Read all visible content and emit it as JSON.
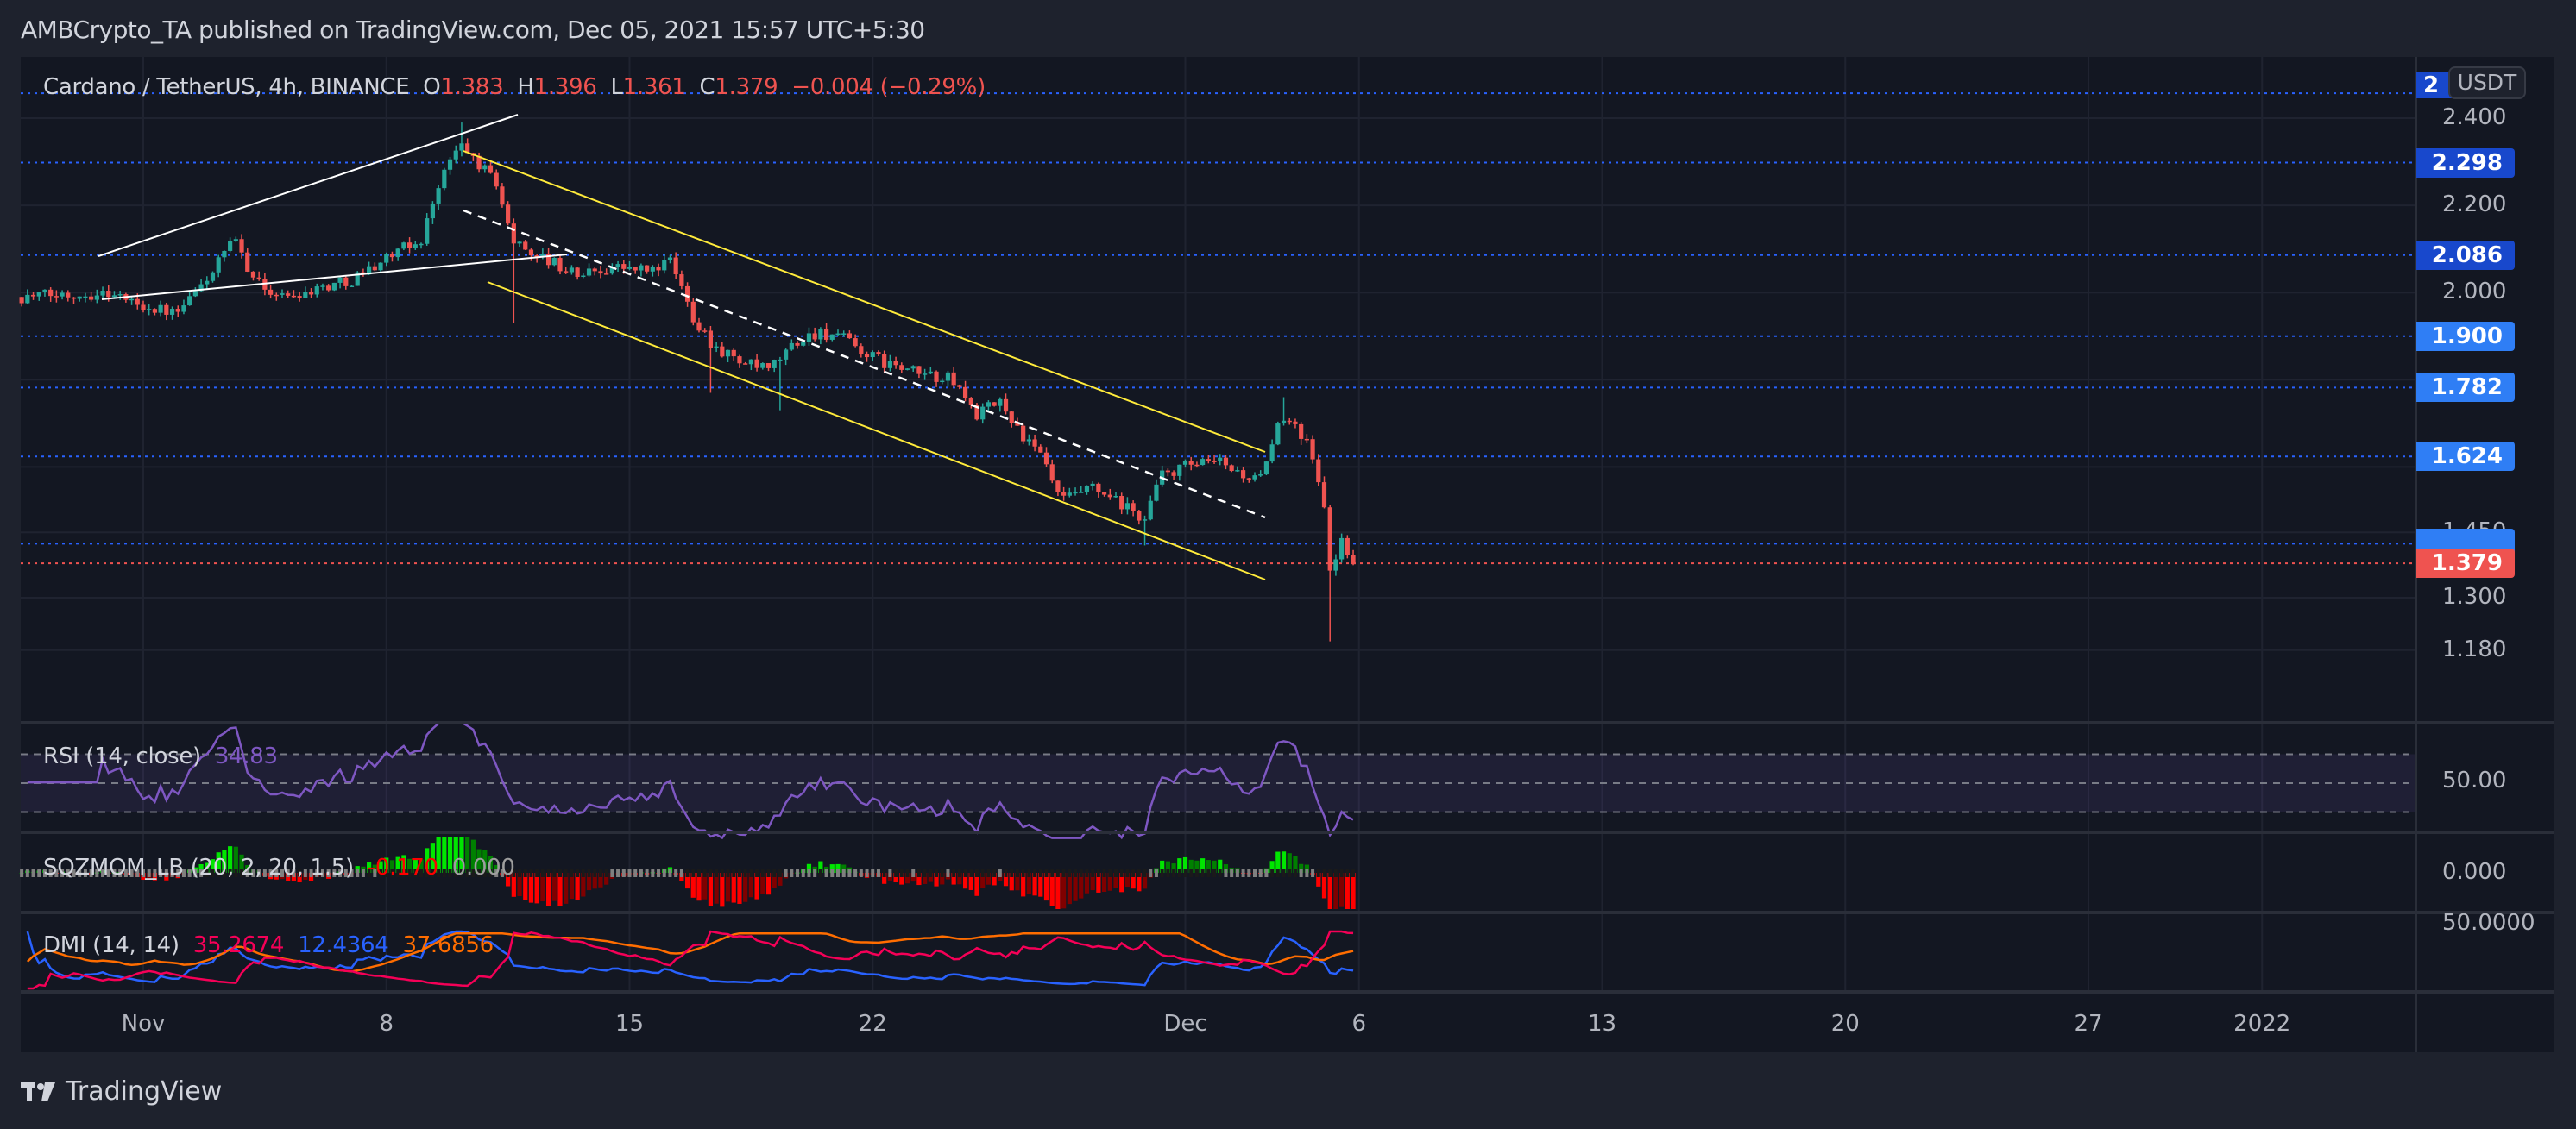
{
  "header": {
    "publish_line": "AMBCrypto_TA published on TradingView.com, Dec 05, 2021 15:57 UTC+5:30"
  },
  "symbol": {
    "title": "Cardano / TetherUS, 4h, BINANCE",
    "open_label": "O",
    "open": "1.383",
    "high_label": "H",
    "high": "1.396",
    "low_label": "L",
    "low": "1.361",
    "close_label": "C",
    "close": "1.379",
    "change": "−0.004 (−0.29%)"
  },
  "price_axis": {
    "currency": "USDT",
    "ticks": [
      "2.400",
      "2.200",
      "2.000",
      "1.450",
      "1.300",
      "1.180"
    ],
    "level_labels": [
      {
        "text": "2",
        "price": 2.457,
        "color": "#1848cc"
      },
      {
        "text": "2.298",
        "price": 2.298,
        "color": "#1848cc"
      },
      {
        "text": "2.086",
        "price": 2.086,
        "color": "#1848cc"
      },
      {
        "text": "1.900",
        "price": 1.9,
        "color": "#2f7ef5"
      },
      {
        "text": "1.782",
        "price": 1.782,
        "color": "#2f7ef5"
      },
      {
        "text": "1.624",
        "price": 1.624,
        "color": "#2f7ef5"
      },
      {
        "text": "",
        "price": 1.424,
        "color": "#2f7ef5"
      },
      {
        "text": "1.379",
        "price": 1.379,
        "color": "#ef5350"
      }
    ]
  },
  "time_axis": {
    "labels": [
      "Nov",
      "8",
      "15",
      "22",
      "Dec",
      "6",
      "13",
      "20",
      "27",
      "2022"
    ]
  },
  "indicators": {
    "rsi": {
      "title": "RSI (14, close)",
      "value": "34.83",
      "axis": "50.00",
      "color": "#7e57c2"
    },
    "sqz": {
      "title": "SQZMOM_LB (20, 2, 20, 1.5)",
      "value1": "-0.170",
      "value2": "0.000",
      "axis": "0.000"
    },
    "dmi": {
      "title": "DMI (14, 14)",
      "plus": "35.2674",
      "minus": "12.4364",
      "adx": "37.6856",
      "axis": "50.0000",
      "colors": {
        "plus": "#f50057",
        "minus": "#2962ff",
        "adx": "#ff6d00"
      }
    }
  },
  "colors": {
    "up": "#26a69a",
    "down": "#ef5350",
    "level": "#2962ff"
  },
  "chart_data": {
    "type": "candlestick",
    "interval": "4h",
    "note": "approximate price waypoints (day offset from Nov 1 2021, price USDT)",
    "waypoints": [
      [
        -3.5,
        1.99
      ],
      [
        -1,
        2.0
      ],
      [
        0,
        1.97
      ],
      [
        1,
        1.95
      ],
      [
        2,
        2.05
      ],
      [
        2.6,
        2.12
      ],
      [
        3.3,
        2.02
      ],
      [
        4,
        1.99
      ],
      [
        5,
        2.01
      ],
      [
        6,
        2.03
      ],
      [
        7,
        2.08
      ],
      [
        8,
        2.12
      ],
      [
        8.5,
        2.25
      ],
      [
        9.1,
        2.34
      ],
      [
        9.6,
        2.3
      ],
      [
        10.2,
        2.25
      ],
      [
        10.6,
        2.12
      ],
      [
        11.5,
        2.08
      ],
      [
        12.5,
        2.04
      ],
      [
        13.5,
        2.06
      ],
      [
        14.5,
        2.05
      ],
      [
        15.2,
        2.07
      ],
      [
        15.8,
        1.95
      ],
      [
        16.4,
        1.88
      ],
      [
        17.2,
        1.84
      ],
      [
        18,
        1.82
      ],
      [
        18.7,
        1.88
      ],
      [
        19.4,
        1.91
      ],
      [
        20,
        1.9
      ],
      [
        21,
        1.85
      ],
      [
        22,
        1.82
      ],
      [
        23.3,
        1.8
      ],
      [
        24,
        1.72
      ],
      [
        24.7,
        1.75
      ],
      [
        25.4,
        1.66
      ],
      [
        25.9,
        1.62
      ],
      [
        26.4,
        1.52
      ],
      [
        27.3,
        1.55
      ],
      [
        28.2,
        1.51
      ],
      [
        28.8,
        1.48
      ],
      [
        29.3,
        1.58
      ],
      [
        30,
        1.6
      ],
      [
        31,
        1.61
      ],
      [
        31.7,
        1.58
      ],
      [
        32.2,
        1.57
      ],
      [
        32.8,
        1.72
      ],
      [
        33.2,
        1.7
      ],
      [
        33.7,
        1.62
      ],
      [
        34.0,
        1.5
      ],
      [
        34.1,
        1.36
      ],
      [
        34.3,
        1.38
      ],
      [
        34.5,
        1.43
      ],
      [
        34.75,
        1.4
      ],
      [
        34.9,
        1.379
      ]
    ],
    "wicks": [
      [
        9.2,
        2.39,
        "high"
      ],
      [
        10.7,
        1.93,
        "low"
      ],
      [
        16.3,
        1.77,
        "low"
      ],
      [
        18.4,
        1.73,
        "low"
      ],
      [
        28.9,
        1.42,
        "low"
      ],
      [
        34.1,
        1.2,
        "low"
      ],
      [
        32.9,
        1.76,
        "high"
      ]
    ]
  }
}
